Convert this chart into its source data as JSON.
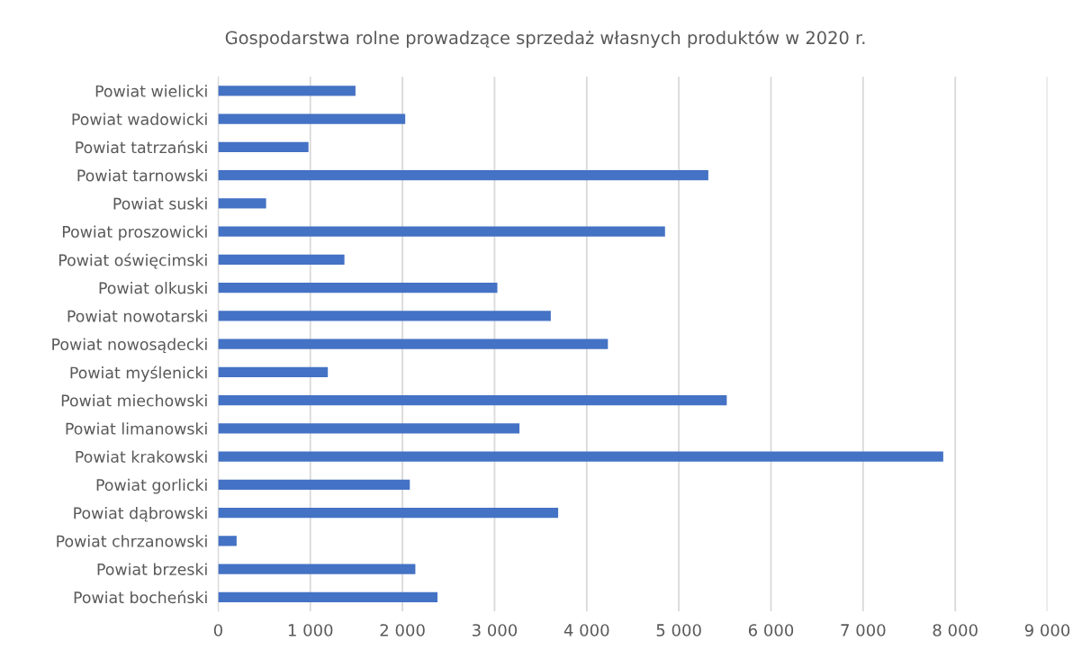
{
  "chart_data": {
    "type": "bar",
    "orientation": "horizontal",
    "title": "Gospodarstwa rolne prowadzące sprzedaż własnych produktów w 2020 r.",
    "categories": [
      "Powiat wielicki",
      "Powiat wadowicki",
      "Powiat tatrzański",
      "Powiat tarnowski",
      "Powiat suski",
      "Powiat proszowicki",
      "Powiat oświęcimski",
      "Powiat olkuski",
      "Powiat nowotarski",
      "Powiat nowosądecki",
      "Powiat myślenicki",
      "Powiat miechowski",
      "Powiat limanowski",
      "Powiat krakowski",
      "Powiat gorlicki",
      "Powiat dąbrowski",
      "Powiat chrzanowski",
      "Powiat brzeski",
      "Powiat bocheński"
    ],
    "values": [
      1490,
      2030,
      980,
      5320,
      520,
      4850,
      1370,
      3030,
      3610,
      4230,
      1190,
      5520,
      3270,
      7870,
      2080,
      3690,
      200,
      2140,
      2380
    ],
    "color": "#4472c4",
    "xlim": [
      0,
      9000
    ],
    "xticks": [
      0,
      {
        "value": 1000,
        "label": "1 000"
      },
      {
        "value": 2000,
        "label": "2 000"
      },
      {
        "value": 3000,
        "label": "3 000"
      },
      {
        "value": 4000,
        "label": "4 000"
      },
      {
        "value": 5000,
        "label": "5 000"
      },
      {
        "value": 6000,
        "label": "6 000"
      },
      {
        "value": 7000,
        "label": "7 000"
      },
      {
        "value": 8000,
        "label": "8 000"
      },
      {
        "value": 9000,
        "label": "9 000"
      }
    ],
    "grid": "x"
  }
}
